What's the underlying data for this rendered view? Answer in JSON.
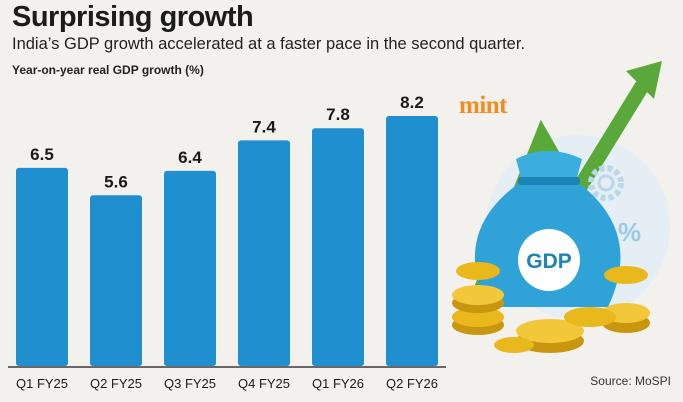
{
  "header": {
    "title": "Surprising growth",
    "subtitle": "India’s GDP growth accelerated at a faster pace in the second quarter."
  },
  "footer": {
    "source": "Source: MoSPI"
  },
  "branding": {
    "logo_text": "mint",
    "logo_color": "#f28c1e"
  },
  "illustration": {
    "bag_label": "GDP",
    "percent_symbol": "%"
  },
  "colors": {
    "bar": "#1f8fd0",
    "arrow": "#5ba83a",
    "coin": "#e8b81c"
  },
  "chart_data": {
    "type": "bar",
    "title": "Surprising growth",
    "subtitle": "India’s GDP growth accelerated at a faster pace in the second quarter.",
    "ylabel": "Year-on-year real GDP growth (%)",
    "xlabel": "",
    "categories": [
      "Q1 FY25",
      "Q2 FY25",
      "Q3 FY25",
      "Q4 FY25",
      "Q1 FY26",
      "Q2 FY26"
    ],
    "values": [
      6.5,
      5.6,
      6.4,
      7.4,
      7.8,
      8.2
    ],
    "value_labels": [
      "6.5",
      "5.6",
      "6.4",
      "7.4",
      "7.8",
      "8.2"
    ],
    "ylim": [
      0,
      8.2
    ],
    "grid": false,
    "legend": "none"
  }
}
